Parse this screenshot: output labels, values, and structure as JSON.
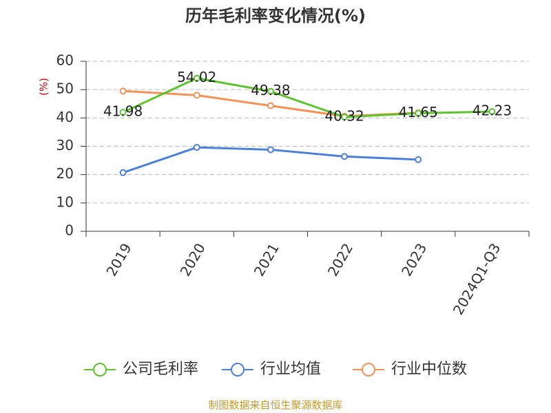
{
  "chart_data": {
    "type": "line",
    "title": "历年毛利率变化情况(%)",
    "y_label": "(%)",
    "categories": [
      "2019",
      "2020",
      "2021",
      "2022",
      "2023",
      "2024Q1-Q3"
    ],
    "series": [
      {
        "name": "公司毛利率",
        "color": "#5cc42c",
        "values": [
          41.98,
          54.02,
          49.38,
          40.32,
          41.65,
          42.23
        ],
        "show_labels": true
      },
      {
        "name": "行业均值",
        "color": "#4a7fdc",
        "values": [
          20.7,
          29.6,
          28.8,
          26.4,
          25.3,
          null
        ]
      },
      {
        "name": "行业中位数",
        "color": "#f59155",
        "values": [
          49.5,
          48.0,
          44.3,
          40.6,
          41.8,
          null
        ]
      }
    ],
    "ylim": [
      0,
      60
    ],
    "yticks": [
      0,
      10,
      20,
      30,
      40,
      50,
      60
    ],
    "grid": true,
    "source": "制图数据来自恒生聚源数据库"
  }
}
